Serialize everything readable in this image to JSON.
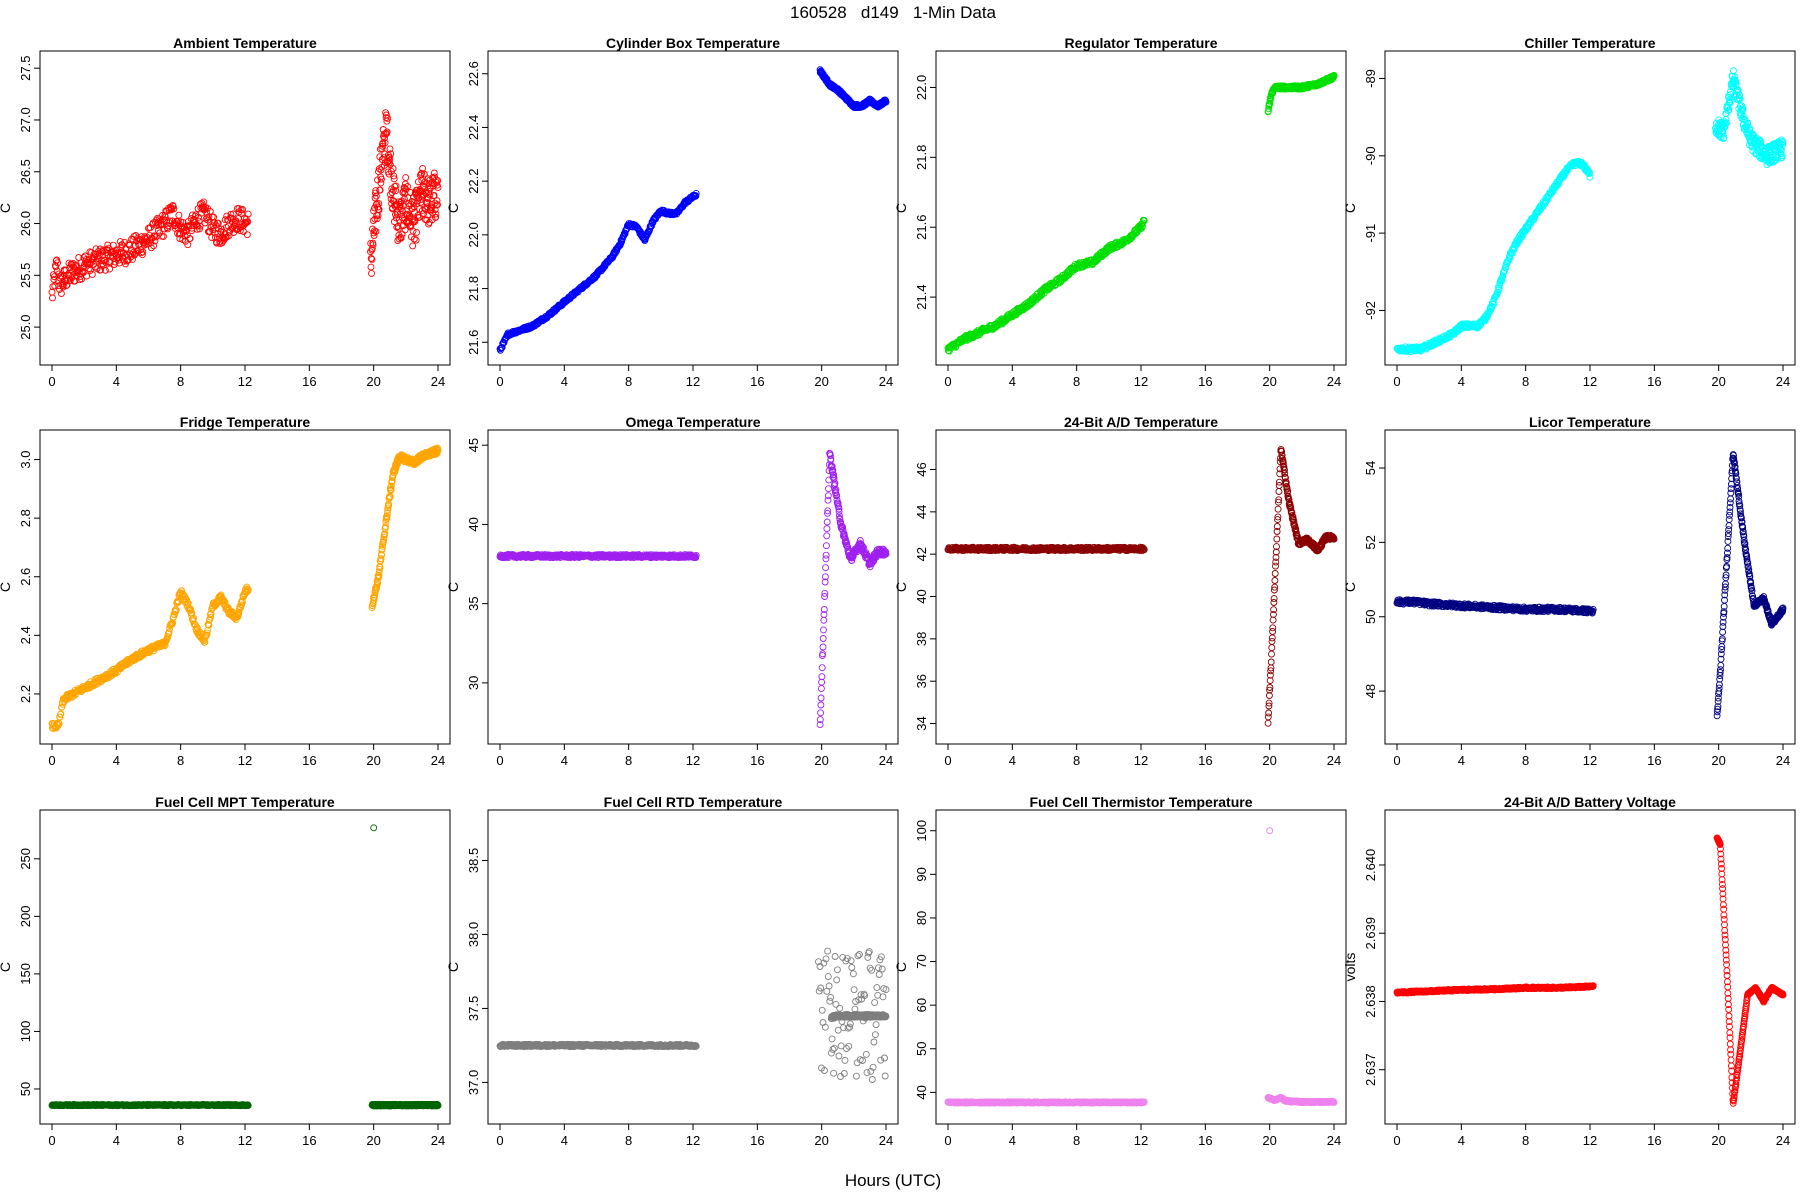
{
  "figure": {
    "title": "160528   d149   1-Min Data",
    "xlabel": "Hours (UTC)"
  },
  "chart_data": [
    {
      "type": "scatter",
      "title": "Ambient Temperature",
      "ylabel": "C",
      "color": "#ff0000",
      "xlim": [
        0,
        24
      ],
      "ylim": [
        24.75,
        27.55
      ],
      "xticks": [
        0,
        4,
        8,
        12,
        16,
        20,
        24
      ],
      "yticks": [
        25.0,
        25.5,
        26.0,
        26.5,
        27.0,
        27.5
      ],
      "ytick_decimals": 1,
      "segments": [
        {
          "x": [
            0,
            0.3,
            0.5,
            1,
            1.5,
            2,
            3,
            4,
            5,
            6,
            7,
            7.5,
            8,
            8.5,
            9,
            9.5,
            10,
            10.5,
            11,
            11.5,
            12.2
          ],
          "y": [
            25.3,
            25.6,
            25.4,
            25.5,
            25.55,
            25.6,
            25.65,
            25.7,
            25.75,
            25.85,
            26.0,
            26.1,
            25.95,
            25.9,
            26.05,
            26.1,
            25.95,
            25.9,
            26.0,
            26.05,
            26.0
          ],
          "noise": 0.12,
          "n": 420
        },
        {
          "x": [
            19.8,
            20.2,
            20.5,
            20.8,
            21.2,
            21.6,
            22,
            22.5,
            23,
            23.5,
            24
          ],
          "y": [
            25.6,
            26.2,
            26.6,
            26.9,
            26.3,
            26.0,
            26.2,
            26.0,
            26.3,
            26.2,
            26.3
          ],
          "noise": 0.25,
          "n": 260
        }
      ]
    },
    {
      "type": "scatter",
      "title": "Cylinder Box Temperature",
      "ylabel": "C",
      "color": "#0000ff",
      "xlim": [
        0,
        24
      ],
      "ylim": [
        21.56,
        22.64
      ],
      "xticks": [
        0,
        4,
        8,
        12,
        16,
        20,
        24
      ],
      "yticks": [
        21.6,
        21.8,
        22.0,
        22.2,
        22.4,
        22.6
      ],
      "ytick_decimals": 1,
      "segments": [
        {
          "x": [
            0,
            0.5,
            1,
            2,
            3,
            4,
            5,
            6,
            7,
            7.5,
            8,
            8.5,
            9,
            9.5,
            10,
            10.5,
            11,
            11.5,
            12.2
          ],
          "y": [
            21.57,
            21.63,
            21.64,
            21.66,
            21.7,
            21.75,
            21.8,
            21.85,
            21.92,
            21.97,
            22.04,
            22.03,
            21.98,
            22.05,
            22.09,
            22.08,
            22.08,
            22.12,
            22.15
          ],
          "noise": 0.006,
          "n": 440
        },
        {
          "x": [
            19.9,
            20.5,
            21,
            21.5,
            22,
            22.5,
            23,
            23.5,
            24
          ],
          "y": [
            22.61,
            22.56,
            22.54,
            22.51,
            22.48,
            22.48,
            22.5,
            22.48,
            22.5
          ],
          "noise": 0.006,
          "n": 250
        }
      ]
    },
    {
      "type": "scatter",
      "title": "Regulator Temperature",
      "ylabel": "C",
      "color": "#00e000",
      "xlim": [
        0,
        24
      ],
      "ylim": [
        21.24,
        22.07
      ],
      "xticks": [
        0,
        4,
        8,
        12,
        16,
        20,
        24
      ],
      "yticks": [
        21.4,
        21.6,
        21.8,
        22.0
      ],
      "ytick_decimals": 1,
      "segments": [
        {
          "x": [
            0,
            1,
            2,
            3,
            4,
            5,
            6,
            7,
            8,
            9,
            10,
            11,
            12,
            12.2
          ],
          "y": [
            21.25,
            21.28,
            21.3,
            21.32,
            21.35,
            21.38,
            21.42,
            21.45,
            21.49,
            21.5,
            21.54,
            21.56,
            21.6,
            21.62
          ],
          "noise": 0.008,
          "n": 440
        },
        {
          "x": [
            19.9,
            20.1,
            20.3,
            21,
            22,
            23,
            23.5,
            24
          ],
          "y": [
            21.93,
            21.98,
            22.0,
            22.0,
            22.0,
            22.01,
            22.02,
            22.03
          ],
          "noise": 0.005,
          "n": 250
        }
      ]
    },
    {
      "type": "scatter",
      "title": "Chiller Temperature",
      "ylabel": "C",
      "color": "#00ffff",
      "xlim": [
        0,
        24
      ],
      "ylim": [
        -92.55,
        -88.8
      ],
      "xticks": [
        0,
        4,
        8,
        12,
        16,
        20,
        24
      ],
      "yticks": [
        -92,
        -91,
        -90,
        -89
      ],
      "ytick_decimals": 0,
      "segments": [
        {
          "x": [
            0,
            1.5,
            2.5,
            3.5,
            4,
            5,
            5.5,
            6,
            6.5,
            7,
            7.5,
            8,
            8.5,
            9,
            9.5,
            10,
            10.5,
            11,
            11.5,
            12
          ],
          "y": [
            -92.5,
            -92.5,
            -92.4,
            -92.3,
            -92.2,
            -92.2,
            -92.1,
            -91.9,
            -91.6,
            -91.3,
            -91.1,
            -90.95,
            -90.8,
            -90.65,
            -90.5,
            -90.35,
            -90.2,
            -90.1,
            -90.1,
            -90.25
          ],
          "noise": 0.03,
          "n": 430
        },
        {
          "x": [
            19.8,
            20.3,
            20.9,
            21.5,
            22,
            22.5,
            23,
            24
          ],
          "y": [
            -89.6,
            -89.7,
            -89.0,
            -89.5,
            -89.8,
            -89.9,
            -90.0,
            -89.9
          ],
          "noise": 0.12,
          "n": 250
        }
      ]
    },
    {
      "type": "scatter",
      "title": "Fridge Temperature",
      "ylabel": "C",
      "color": "#ffa500",
      "xlim": [
        0,
        24
      ],
      "ylim": [
        2.07,
        3.06
      ],
      "xticks": [
        0,
        4,
        8,
        12,
        16,
        20,
        24
      ],
      "yticks": [
        2.2,
        2.4,
        2.6,
        2.8,
        3.0
      ],
      "ytick_decimals": 1,
      "segments": [
        {
          "x": [
            0,
            0.4,
            0.7,
            1,
            2,
            3,
            4,
            5,
            6,
            7,
            7.5,
            8,
            8.5,
            9,
            9.5,
            10,
            10.5,
            11,
            11.5,
            12,
            12.2
          ],
          "y": [
            2.09,
            2.09,
            2.18,
            2.19,
            2.22,
            2.25,
            2.28,
            2.32,
            2.35,
            2.37,
            2.45,
            2.55,
            2.5,
            2.42,
            2.38,
            2.5,
            2.53,
            2.48,
            2.46,
            2.55,
            2.56
          ],
          "noise": 0.01,
          "n": 440
        },
        {
          "x": [
            19.9,
            20.3,
            20.8,
            21.2,
            21.6,
            22.5,
            23,
            24
          ],
          "y": [
            2.5,
            2.6,
            2.8,
            2.95,
            3.01,
            2.99,
            3.01,
            3.03
          ],
          "noise": 0.01,
          "n": 250
        }
      ]
    },
    {
      "type": "scatter",
      "title": "Omega Temperature",
      "ylabel": "C",
      "color": "#a020f0",
      "xlim": [
        0,
        24
      ],
      "ylim": [
        26.9,
        45.2
      ],
      "xticks": [
        0,
        4,
        8,
        12,
        16,
        20,
        24
      ],
      "yticks": [
        30,
        35,
        40,
        45
      ],
      "ytick_decimals": 0,
      "segments": [
        {
          "x": [
            0,
            12.2
          ],
          "y": [
            38.0,
            38.0
          ],
          "noise": 0.1,
          "n": 440
        },
        {
          "x": [
            19.9,
            20.1,
            20.5,
            21.2,
            21.8,
            22.4,
            23,
            23.5,
            24
          ],
          "y": [
            27.3,
            33.0,
            44.5,
            40.0,
            37.8,
            38.8,
            37.5,
            38.3,
            38.2
          ],
          "noise": 0.2,
          "n": 250
        }
      ]
    },
    {
      "type": "scatter",
      "title": "24-Bit A/D Temperature",
      "ylabel": "C",
      "color": "#8b0000",
      "xlim": [
        0,
        24
      ],
      "ylim": [
        33.6,
        47.3
      ],
      "xticks": [
        0,
        4,
        8,
        12,
        16,
        20,
        24
      ],
      "yticks": [
        34,
        36,
        38,
        40,
        42,
        44,
        46
      ],
      "ytick_decimals": 0,
      "segments": [
        {
          "x": [
            0,
            12.2
          ],
          "y": [
            42.25,
            42.25
          ],
          "noise": 0.08,
          "n": 440
        },
        {
          "x": [
            19.9,
            20.1,
            20.7,
            21.2,
            21.8,
            22.3,
            23,
            23.5,
            24
          ],
          "y": [
            34.0,
            37.0,
            47.0,
            44.5,
            42.5,
            42.7,
            42.2,
            42.8,
            42.8
          ],
          "noise": 0.1,
          "n": 250
        }
      ]
    },
    {
      "type": "scatter",
      "title": "Licor Temperature",
      "ylabel": "C",
      "color": "#000080",
      "xlim": [
        0,
        24
      ],
      "ylim": [
        46.9,
        54.7
      ],
      "xticks": [
        0,
        4,
        8,
        12,
        16,
        20,
        24
      ],
      "yticks": [
        48,
        50,
        52,
        54
      ],
      "ytick_decimals": 0,
      "segments": [
        {
          "x": [
            0,
            1,
            2,
            4,
            6,
            8,
            10,
            12.2
          ],
          "y": [
            50.4,
            50.4,
            50.35,
            50.3,
            50.25,
            50.2,
            50.2,
            50.15
          ],
          "noise": 0.06,
          "n": 440
        },
        {
          "x": [
            19.9,
            20.1,
            20.9,
            21.6,
            22.2,
            22.8,
            23.3,
            24
          ],
          "y": [
            47.3,
            48.5,
            54.4,
            52.0,
            50.3,
            50.5,
            49.8,
            50.2
          ],
          "noise": 0.05,
          "n": 250
        }
      ]
    },
    {
      "type": "scatter",
      "title": "Fuel Cell MPT Temperature",
      "ylabel": "C",
      "color": "#006400",
      "xlim": [
        0,
        24
      ],
      "ylim": [
        30,
        282
      ],
      "xticks": [
        0,
        4,
        8,
        12,
        16,
        20,
        24
      ],
      "yticks": [
        50,
        100,
        150,
        200,
        250
      ],
      "ytick_decimals": 0,
      "outliers": [
        {
          "x": 20,
          "y": 277
        }
      ],
      "segments": [
        {
          "x": [
            0,
            12.2
          ],
          "y": [
            36,
            36
          ],
          "noise": 0.5,
          "n": 440
        },
        {
          "x": [
            19.9,
            24
          ],
          "y": [
            36,
            36
          ],
          "noise": 0.7,
          "n": 250
        }
      ]
    },
    {
      "type": "scatter",
      "title": "Fuel Cell RTD Temperature",
      "ylabel": "C",
      "color": "#7f7f7f",
      "xlim": [
        0,
        24
      ],
      "ylim": [
        36.8,
        38.76
      ],
      "xticks": [
        0,
        4,
        8,
        12,
        16,
        20,
        24
      ],
      "yticks": [
        37.0,
        37.5,
        38.0,
        38.5
      ],
      "ytick_decimals": 1,
      "segments": [
        {
          "x": [
            0,
            12.2
          ],
          "y": [
            37.25,
            37.25
          ],
          "noise": 0.008,
          "n": 440
        },
        {
          "x": [
            19.8,
            24
          ],
          "y": [
            37.5,
            37.45
          ],
          "noise": 0.45,
          "n": 90
        },
        {
          "x": [
            20.6,
            21,
            22,
            23,
            24
          ],
          "y": [
            37.44,
            37.45,
            37.45,
            37.45,
            37.45
          ],
          "noise": 0.01,
          "n": 200
        }
      ]
    },
    {
      "type": "scatter",
      "title": "Fuel Cell Thermistor Temperature",
      "ylabel": "C",
      "color": "#ee82ee",
      "xlim": [
        0,
        24
      ],
      "ylim": [
        35.5,
        102
      ],
      "xticks": [
        0,
        4,
        8,
        12,
        16,
        20,
        24
      ],
      "yticks": [
        40,
        50,
        60,
        70,
        80,
        90,
        100
      ],
      "ytick_decimals": 0,
      "outliers": [
        {
          "x": 20,
          "y": 100
        }
      ],
      "segments": [
        {
          "x": [
            0,
            12.2
          ],
          "y": [
            37.7,
            37.7
          ],
          "noise": 0.15,
          "n": 440
        },
        {
          "x": [
            19.9,
            20.3,
            20.7,
            21,
            22,
            24
          ],
          "y": [
            38.8,
            38.2,
            38.8,
            38.0,
            37.8,
            37.8
          ],
          "noise": 0.15,
          "n": 250
        }
      ]
    },
    {
      "type": "scatter",
      "title": "24-Bit A/D Battery Voltage",
      "ylabel": "volts",
      "color": "#ff0000",
      "xlim": [
        0,
        24
      ],
      "ylim": [
        2.63638,
        2.64063
      ],
      "xticks": [
        0,
        4,
        8,
        12,
        16,
        20,
        24
      ],
      "yticks": [
        2.637,
        2.638,
        2.639,
        2.64
      ],
      "ytick_decimals": 3,
      "segments": [
        {
          "x": [
            0,
            2,
            4,
            6,
            8,
            10,
            12.2
          ],
          "y": [
            2.63813,
            2.63815,
            2.63817,
            2.63818,
            2.6382,
            2.6382,
            2.63822
          ],
          "noise": 1.2e-05,
          "n": 440
        },
        {
          "x": [
            19.9,
            20.1,
            20.5,
            20.9,
            21.3,
            21.8,
            22.3,
            22.8,
            23.3,
            24
          ],
          "y": [
            2.6404,
            2.6403,
            2.6385,
            2.6365,
            2.6372,
            2.6381,
            2.6382,
            2.638,
            2.6382,
            2.6381
          ],
          "noise": 1e-05,
          "n": 250
        }
      ]
    }
  ]
}
